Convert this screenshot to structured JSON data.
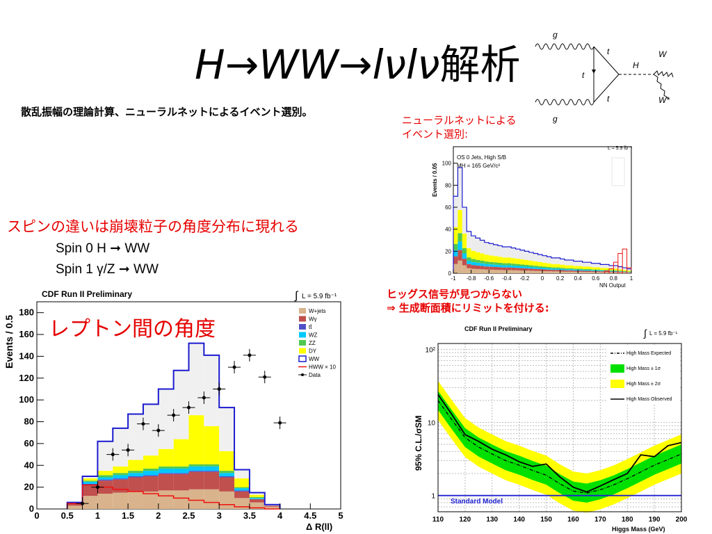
{
  "slide": {
    "title_main": "H→WW→lνlν",
    "title_suffix": "解析",
    "subtitle": "散乱振幅の理論計算、ニューラルネットによるイベント選別。",
    "nn_label_line1": "ニューラルネットによる",
    "nn_label_line2": "イベント選別:",
    "spin_heading": "スピンの違いは崩壊粒子の角度分布に現れる",
    "spin0": "Spin 0  H ➞ WW",
    "spin1": "Spin 1  γ/Z ➞ WW",
    "limit_line1": "ヒッグス信号が見つからない",
    "limit_line2": "⇒  生成断面積にリミットを付ける:",
    "lepton_angle": "レプトン間の角度"
  },
  "feynman": {
    "labels": [
      "g",
      "g",
      "t",
      "t",
      "t",
      "H",
      "W",
      "W*"
    ]
  },
  "chart_data": [
    {
      "type": "bar",
      "title": "CDF Run II Preliminary",
      "lumi": "L = 5.9 fb⁻¹",
      "xlabel": "Δ R(ll)",
      "ylabel": "Events / 0.5",
      "xlim": [
        0,
        5
      ],
      "ylim": [
        0,
        190
      ],
      "xticks": [
        "0",
        "0.5",
        "1",
        "1.5",
        "2",
        "2.5",
        "3",
        "3.5",
        "4",
        "4.5",
        "5"
      ],
      "yticks": [
        "0",
        "20",
        "40",
        "60",
        "80",
        "100",
        "120",
        "140",
        "160",
        "180"
      ],
      "legend_position": "top-right",
      "legend": [
        "W+jets",
        "Wγ",
        "tt̄",
        "WZ",
        "ZZ",
        "DY",
        "WW",
        "HWW × 10",
        "Data"
      ],
      "bin_edges": [
        0.5,
        0.75,
        1.0,
        1.25,
        1.5,
        1.75,
        2.0,
        2.25,
        2.5,
        2.75,
        3.0,
        3.25,
        3.5,
        3.75,
        4.0
      ],
      "series": [
        {
          "name": "W+jets",
          "color": "#d9b38c",
          "values": [
            3,
            12,
            14,
            15,
            16,
            16,
            17,
            17,
            18,
            18,
            16,
            10,
            6,
            2
          ]
        },
        {
          "name": "Wγ",
          "color": "#c0504d",
          "values": [
            2,
            10,
            12,
            12,
            13,
            14,
            15,
            15,
            16,
            16,
            13,
            6,
            3,
            1
          ]
        },
        {
          "name": "tt̄",
          "color": "#5050c8",
          "values": [
            0,
            1,
            1,
            1,
            1,
            1,
            1,
            1,
            1,
            1,
            1,
            1,
            0,
            0
          ]
        },
        {
          "name": "WZ",
          "color": "#00c8ff",
          "values": [
            0,
            2,
            2,
            3,
            3,
            4,
            4,
            4,
            4,
            4,
            3,
            2,
            1,
            0
          ]
        },
        {
          "name": "ZZ",
          "color": "#50c850",
          "values": [
            0,
            1,
            2,
            2,
            2,
            2,
            2,
            2,
            2,
            2,
            2,
            1,
            1,
            0
          ]
        },
        {
          "name": "DY",
          "color": "#ffff00",
          "values": [
            0,
            2,
            4,
            6,
            10,
            12,
            16,
            25,
            45,
            35,
            18,
            8,
            2,
            0
          ]
        },
        {
          "name": "WW",
          "color": "#f0f0f0",
          "values": [
            1,
            2,
            27,
            35,
            42,
            47,
            55,
            63,
            66,
            65,
            40,
            8,
            2,
            1
          ]
        }
      ],
      "hww_x10": [
        5,
        22,
        20,
        18,
        16,
        14,
        12,
        10,
        8,
        6,
        4,
        2,
        1,
        0
      ],
      "data_points": {
        "x": [
          0.75,
          1.0,
          1.25,
          1.5,
          1.75,
          2.0,
          2.25,
          2.5,
          2.75,
          3.0,
          3.25,
          3.5,
          3.75,
          4.0
        ],
        "y": [
          5,
          20,
          50,
          54,
          78,
          72,
          86,
          93,
          102,
          110,
          130,
          141,
          121,
          79
        ]
      }
    },
    {
      "type": "bar",
      "title": "OS 0 Jets, High S/B",
      "mass_label": "MH = 165 GeV/c²",
      "lumi": "L = 5.9 fb⁻¹",
      "xlabel": "NN Output",
      "ylabel": "Events / 0.05",
      "xlim": [
        -1,
        1
      ],
      "ylim": [
        0,
        115
      ],
      "xticks": [
        "-1",
        "-0.8",
        "-0.6",
        "-0.4",
        "-0.2",
        "0",
        "0.2",
        "0.4",
        "0.6",
        "0.8",
        "1"
      ],
      "yticks": [
        "0",
        "20",
        "40",
        "60",
        "80",
        "100"
      ],
      "legend_position": "top-right",
      "stack_total": [
        70,
        96,
        60,
        38,
        34,
        32,
        30,
        28,
        27,
        26,
        25,
        24,
        24,
        23,
        22,
        21,
        20,
        19,
        18,
        17,
        16,
        15,
        14,
        14,
        13,
        12,
        12,
        11,
        11,
        10,
        10,
        9,
        9,
        8,
        8,
        7,
        7,
        6,
        5,
        4
      ],
      "signal_red": [
        0,
        0,
        0,
        0,
        0,
        0,
        0,
        0,
        0,
        0,
        0,
        0,
        0,
        0,
        0,
        0,
        0,
        0,
        0,
        0,
        0,
        0,
        0,
        0,
        0,
        0,
        0,
        0,
        0,
        0,
        0,
        0,
        0,
        0,
        2,
        4,
        10,
        18,
        22,
        5
      ]
    },
    {
      "type": "line",
      "title": "CDF Run II Preliminary",
      "lumi": "L = 5.9 fb⁻¹",
      "xlabel": "Higgs Mass (GeV)",
      "ylabel": "95% C.L./σSM",
      "yscale": "log",
      "xlim": [
        110,
        200
      ],
      "ylim": [
        0.6,
        120
      ],
      "xticks": [
        "110",
        "120",
        "130",
        "140",
        "150",
        "160",
        "170",
        "180",
        "190",
        "200"
      ],
      "yticks": [
        "1",
        "10",
        "10²"
      ],
      "legend_position": "top-right",
      "legend": [
        "High Mass Expected",
        "High Mass ± 1σ",
        "High Mass ± 2σ",
        "High Mass Observed"
      ],
      "standard_model_label": "Standard Model",
      "x": [
        110,
        115,
        120,
        125,
        130,
        135,
        140,
        145,
        150,
        155,
        160,
        165,
        170,
        175,
        180,
        185,
        190,
        195,
        200
      ],
      "expected": [
        20,
        11,
        6.2,
        4.6,
        3.7,
        3.0,
        2.6,
        2.2,
        1.9,
        1.45,
        1.15,
        1.08,
        1.2,
        1.4,
        1.7,
        2.1,
        2.6,
        3.1,
        3.7
      ],
      "observed": [
        24,
        13,
        6.8,
        5.5,
        4.3,
        3.6,
        2.9,
        2.5,
        2.7,
        1.8,
        1.3,
        1.12,
        1.35,
        1.65,
        2.0,
        3.6,
        3.4,
        4.8,
        5.3
      ]
    }
  ]
}
